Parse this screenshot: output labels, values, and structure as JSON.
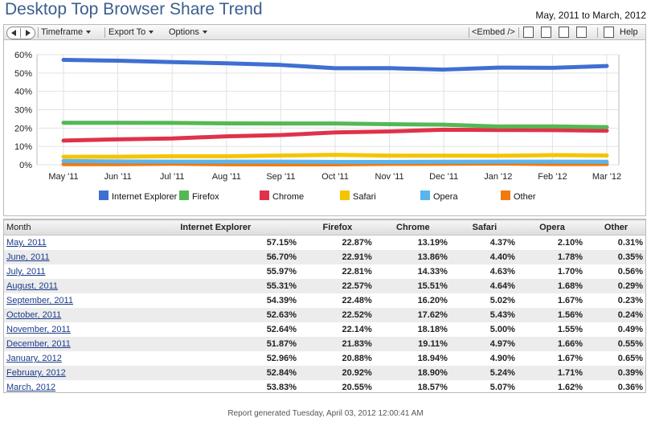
{
  "header": {
    "title": "Desktop Top Browser Share Trend",
    "date_range": "May, 2011 to March, 2012"
  },
  "toolbar": {
    "timeframe": "Timeframe",
    "export_to": "Export To",
    "options": "Options",
    "embed": "<Embed />",
    "help": "Help"
  },
  "chart_data": {
    "type": "line",
    "categories": [
      "May '11",
      "Jun '11",
      "Jul '11",
      "Aug '11",
      "Sep '11",
      "Oct '11",
      "Nov '11",
      "Dec '11",
      "Jan '12",
      "Feb '12",
      "Mar '12"
    ],
    "y_ticks": [
      "0%",
      "10%",
      "20%",
      "30%",
      "40%",
      "50%",
      "60%"
    ],
    "ylim": [
      0,
      60
    ],
    "grid": true,
    "legend_position": "bottom",
    "series": [
      {
        "name": "Internet Explorer",
        "color": "#3f6fd1",
        "values": [
          57.15,
          56.7,
          55.97,
          55.31,
          54.39,
          52.63,
          52.64,
          51.87,
          52.96,
          52.84,
          53.83
        ]
      },
      {
        "name": "Firefox",
        "color": "#54b854",
        "values": [
          22.87,
          22.91,
          22.81,
          22.57,
          22.48,
          22.52,
          22.14,
          21.83,
          20.88,
          20.92,
          20.55
        ]
      },
      {
        "name": "Chrome",
        "color": "#e0324a",
        "values": [
          13.19,
          13.86,
          14.33,
          15.51,
          16.2,
          17.62,
          18.18,
          19.11,
          18.94,
          18.9,
          18.57
        ]
      },
      {
        "name": "Safari",
        "color": "#f5c400",
        "values": [
          4.37,
          4.4,
          4.63,
          4.64,
          5.02,
          5.43,
          5.0,
          4.97,
          4.9,
          5.24,
          5.07
        ]
      },
      {
        "name": "Opera",
        "color": "#5ab4ee",
        "values": [
          2.1,
          1.78,
          1.7,
          1.68,
          1.67,
          1.56,
          1.55,
          1.66,
          1.67,
          1.71,
          1.62
        ]
      },
      {
        "name": "Other",
        "color": "#f07a10",
        "values": [
          0.31,
          0.35,
          0.56,
          0.29,
          0.23,
          0.24,
          0.49,
          0.55,
          0.65,
          0.39,
          0.36
        ]
      }
    ]
  },
  "table": {
    "headers": [
      "Month",
      "Internet Explorer",
      "Firefox",
      "Chrome",
      "Safari",
      "Opera",
      "Other"
    ],
    "rows": [
      [
        "May, 2011",
        "57.15%",
        "22.87%",
        "13.19%",
        "4.37%",
        "2.10%",
        "0.31%"
      ],
      [
        "June, 2011",
        "56.70%",
        "22.91%",
        "13.86%",
        "4.40%",
        "1.78%",
        "0.35%"
      ],
      [
        "July, 2011",
        "55.97%",
        "22.81%",
        "14.33%",
        "4.63%",
        "1.70%",
        "0.56%"
      ],
      [
        "August, 2011",
        "55.31%",
        "22.57%",
        "15.51%",
        "4.64%",
        "1.68%",
        "0.29%"
      ],
      [
        "September, 2011",
        "54.39%",
        "22.48%",
        "16.20%",
        "5.02%",
        "1.67%",
        "0.23%"
      ],
      [
        "October, 2011",
        "52.63%",
        "22.52%",
        "17.62%",
        "5.43%",
        "1.56%",
        "0.24%"
      ],
      [
        "November, 2011",
        "52.64%",
        "22.14%",
        "18.18%",
        "5.00%",
        "1.55%",
        "0.49%"
      ],
      [
        "December, 2011",
        "51.87%",
        "21.83%",
        "19.11%",
        "4.97%",
        "1.66%",
        "0.55%"
      ],
      [
        "January, 2012",
        "52.96%",
        "20.88%",
        "18.94%",
        "4.90%",
        "1.67%",
        "0.65%"
      ],
      [
        "February, 2012",
        "52.84%",
        "20.92%",
        "18.90%",
        "5.24%",
        "1.71%",
        "0.39%"
      ],
      [
        "March, 2012",
        "53.83%",
        "20.55%",
        "18.57%",
        "5.07%",
        "1.62%",
        "0.36%"
      ]
    ]
  },
  "footer": "Report generated Tuesday, April 03, 2012 12:00:41 AM"
}
